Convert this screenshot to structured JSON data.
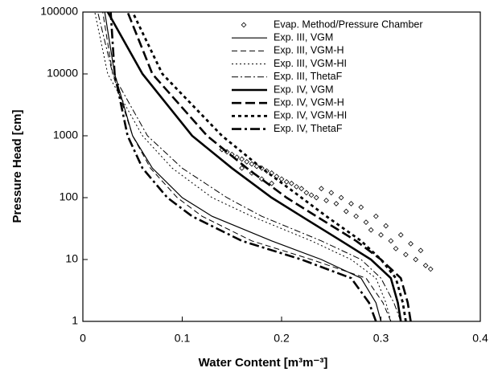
{
  "chart_data": {
    "type": "line",
    "xlabel": "Water Content [m³m⁻³]",
    "ylabel": "Pressure Head [cm]",
    "xlim": [
      0,
      0.4
    ],
    "xticks": [
      0,
      0.1,
      0.2,
      0.3,
      0.4
    ],
    "ylim": [
      1,
      100000
    ],
    "yticks": [
      1,
      10,
      100,
      1000,
      10000,
      100000
    ],
    "ylog": true,
    "legend": "upper right",
    "series": [
      {
        "name": "Evap. Method/Pressure Chamber",
        "kind": "scatter",
        "color": "#000000",
        "x": [
          0.14,
          0.145,
          0.15,
          0.155,
          0.16,
          0.165,
          0.17,
          0.175,
          0.18,
          0.185,
          0.19,
          0.195,
          0.2,
          0.205,
          0.21,
          0.215,
          0.22,
          0.225,
          0.23,
          0.235,
          0.24,
          0.245,
          0.25,
          0.255,
          0.26,
          0.265,
          0.27,
          0.275,
          0.28,
          0.285,
          0.29,
          0.295,
          0.3,
          0.305,
          0.31,
          0.315,
          0.32,
          0.325,
          0.33,
          0.335,
          0.34,
          0.345,
          0.35,
          0.16,
          0.17,
          0.18,
          0.19
        ],
        "values": [
          600,
          550,
          500,
          450,
          420,
          380,
          350,
          320,
          300,
          270,
          250,
          220,
          200,
          180,
          170,
          150,
          140,
          120,
          110,
          100,
          140,
          90,
          120,
          80,
          100,
          60,
          80,
          50,
          70,
          40,
          30,
          50,
          25,
          35,
          20,
          15,
          25,
          12,
          18,
          10,
          14,
          8,
          7,
          300,
          250,
          200,
          170
        ]
      },
      {
        "name": "Exp. III, VGM",
        "color": "#000000",
        "dash": "",
        "width": 1.2,
        "x": [
          0.3,
          0.295,
          0.28,
          0.24,
          0.19,
          0.13,
          0.1,
          0.07,
          0.05,
          0.032,
          0.022
        ],
        "values": [
          1,
          2,
          5,
          10,
          20,
          50,
          100,
          300,
          1000,
          10000,
          100000
        ]
      },
      {
        "name": "Exp. III, VGM-H",
        "color": "#000000",
        "dash": "7 4",
        "width": 1,
        "x": [
          0.31,
          0.302,
          0.285,
          0.23,
          0.17,
          0.12,
          0.095,
          0.068,
          0.05,
          0.03,
          0.02
        ],
        "values": [
          1,
          2,
          5,
          10,
          20,
          50,
          100,
          300,
          1000,
          10000,
          100000
        ]
      },
      {
        "name": "Exp. III, VGM-HI",
        "color": "#000000",
        "dash": "2 3",
        "width": 1,
        "x": [
          0.31,
          0.305,
          0.295,
          0.27,
          0.23,
          0.17,
          0.13,
          0.09,
          0.06,
          0.025,
          0.012
        ],
        "values": [
          1,
          2,
          5,
          10,
          20,
          50,
          100,
          300,
          1000,
          10000,
          100000
        ]
      },
      {
        "name": "Exp. III, ThetaF",
        "color": "#000000",
        "dash": "8 3 2 3",
        "width": 1,
        "x": [
          0.32,
          0.313,
          0.3,
          0.28,
          0.24,
          0.18,
          0.145,
          0.1,
          0.065,
          0.03,
          0.015
        ],
        "values": [
          1,
          2,
          5,
          10,
          20,
          50,
          100,
          300,
          1000,
          10000,
          100000
        ]
      },
      {
        "name": "Exp. IV, VGM",
        "color": "#000000",
        "dash": "",
        "width": 2.6,
        "x": [
          0.32,
          0.317,
          0.31,
          0.29,
          0.26,
          0.22,
          0.19,
          0.15,
          0.11,
          0.06,
          0.025
        ],
        "values": [
          1,
          2,
          5,
          10,
          20,
          50,
          100,
          300,
          1000,
          10000,
          100000
        ]
      },
      {
        "name": "Exp. IV, VGM-H",
        "color": "#000000",
        "dash": "12 5",
        "width": 2.6,
        "x": [
          0.33,
          0.327,
          0.32,
          0.3,
          0.275,
          0.235,
          0.205,
          0.165,
          0.125,
          0.07,
          0.045
        ],
        "values": [
          1,
          2,
          5,
          10,
          20,
          50,
          100,
          300,
          1000,
          10000,
          100000
        ]
      },
      {
        "name": "Exp. IV, VGM-HI",
        "color": "#000000",
        "dash": "4 4",
        "width": 2.8,
        "x": [
          0.325,
          0.322,
          0.315,
          0.3,
          0.28,
          0.245,
          0.22,
          0.18,
          0.14,
          0.08,
          0.05
        ],
        "values": [
          1,
          2,
          5,
          10,
          20,
          50,
          100,
          300,
          1000,
          10000,
          100000
        ]
      },
      {
        "name": "Exp. IV, ThetaF",
        "color": "#000000",
        "dash": "12 4 3 4",
        "width": 2.6,
        "x": [
          0.295,
          0.288,
          0.27,
          0.22,
          0.16,
          0.11,
          0.085,
          0.06,
          0.045,
          0.032,
          0.028
        ],
        "values": [
          1,
          2,
          5,
          10,
          20,
          50,
          100,
          300,
          1000,
          10000,
          100000
        ]
      }
    ]
  }
}
